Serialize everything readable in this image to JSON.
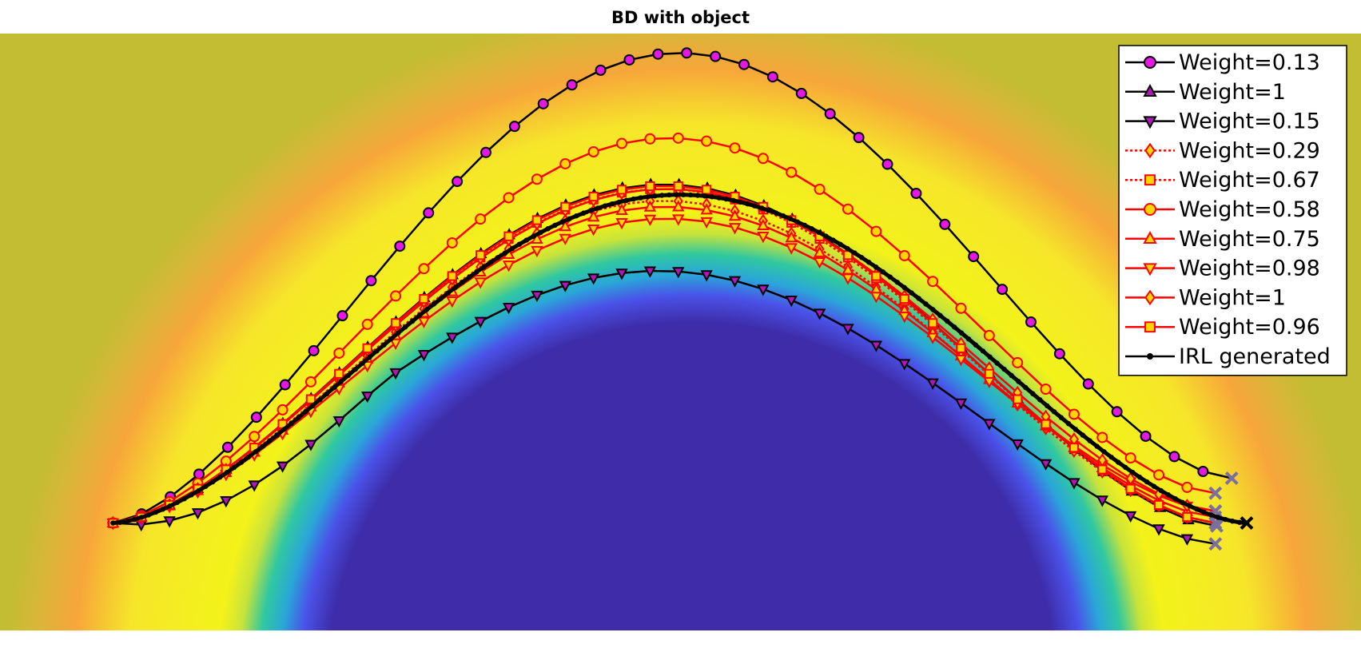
{
  "chart_data": {
    "type": "line",
    "title": "BD with object",
    "xlabel": "",
    "ylabel": "",
    "xlim": [
      0,
      1
    ],
    "ylim": [
      0,
      1
    ],
    "grid": false,
    "legend_placement": "top-right",
    "background": {
      "kind": "heatmap",
      "description_colors": {
        "far": "#c2bd32",
        "ring_outer": "#f7a63a",
        "ring_mid": "#f3f21a",
        "ring_inner": "#2fbfb0",
        "object": "#3e2ca8"
      },
      "object_center": [
        0.524,
        -0.1
      ],
      "object_radius": 0.52
    },
    "series": [
      {
        "name": "Weight=0.13",
        "line_color": "#000000",
        "marker": "circle",
        "marker_fill": "#e318e3",
        "line_style": "solid",
        "amplitude": 0.75,
        "end_y": 0.255,
        "end_x": 0.905,
        "points": 40
      },
      {
        "name": "Weight=1",
        "line_color": "#000000",
        "marker": "triangle-up",
        "marker_fill": "#b117b8",
        "line_style": "solid",
        "amplitude": 0.57,
        "end_y": 0.175,
        "end_x": 0.894,
        "points": 40
      },
      {
        "name": "Weight=0.15",
        "line_color": "#000000",
        "marker": "triangle-down",
        "marker_fill": "#b117b8",
        "line_style": "solid",
        "amplitude": 0.44,
        "end_y": 0.145,
        "end_x": 0.893,
        "points": 40,
        "start_dip": 0.03
      },
      {
        "name": "Weight=0.29",
        "line_color": "#ff0000",
        "marker": "diamond",
        "marker_fill": "#ffd700",
        "line_style": "dotted",
        "amplitude": 0.54,
        "end_y": 0.18,
        "end_x": 0.893,
        "points": 40
      },
      {
        "name": "Weight=0.67",
        "line_color": "#ff0000",
        "marker": "square",
        "marker_fill": "#ffd700",
        "line_style": "dotted",
        "amplitude": 0.56,
        "end_y": 0.18,
        "end_x": 0.893,
        "points": 40
      },
      {
        "name": "Weight=0.58",
        "line_color": "#ff0000",
        "marker": "circle",
        "marker_fill": "#ffd700",
        "line_style": "solid",
        "amplitude": 0.62,
        "end_y": 0.23,
        "end_x": 0.893,
        "points": 40
      },
      {
        "name": "Weight=0.75",
        "line_color": "#ff0000",
        "marker": "triangle-up",
        "marker_fill": "#ffd700",
        "line_style": "solid",
        "amplitude": 0.525,
        "end_y": 0.19,
        "end_x": 0.893,
        "points": 40
      },
      {
        "name": "Weight=0.98",
        "line_color": "#ff0000",
        "marker": "triangle-down",
        "marker_fill": "#ffd700",
        "line_style": "solid",
        "amplitude": 0.5,
        "end_y": 0.2,
        "end_x": 0.893,
        "points": 40
      },
      {
        "name": "Weight=1",
        "line_color": "#ff0000",
        "marker": "diamond",
        "marker_fill": "#ffd700",
        "line_style": "solid",
        "amplitude": 0.55,
        "end_y": 0.2,
        "end_x": 0.893,
        "points": 40
      },
      {
        "name": "Weight=0.96",
        "line_color": "#ff0000",
        "marker": "square",
        "marker_fill": "#ffd700",
        "line_style": "solid",
        "amplitude": 0.565,
        "end_y": 0.18,
        "end_x": 0.893,
        "points": 40
      },
      {
        "name": "IRL generated",
        "line_color": "#000000",
        "marker": "dot",
        "marker_fill": "#000000",
        "line_style": "solid",
        "amplitude": 0.55,
        "end_y": 0.18,
        "end_x": 0.916,
        "points": 160,
        "bold": true
      }
    ],
    "start_point": [
      0.083,
      0.18
    ],
    "endpoint_marker": "x"
  }
}
